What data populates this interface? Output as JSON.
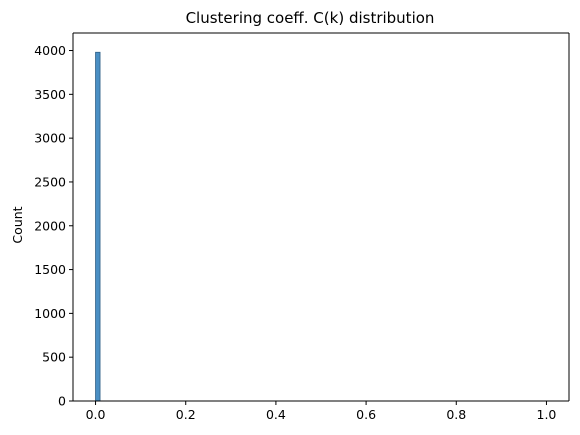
{
  "chart_data": {
    "type": "bar",
    "title": "Clustering coeff. C(k) distribution",
    "xlabel": "",
    "ylabel": "Count",
    "xlim": [
      -0.05,
      1.05
    ],
    "ylim": [
      0,
      4200
    ],
    "x_ticks": [
      0.0,
      0.2,
      0.4,
      0.6,
      0.8,
      1.0
    ],
    "x_tick_labels": [
      "0.0",
      "0.2",
      "0.4",
      "0.6",
      "0.8",
      "1.0"
    ],
    "y_ticks": [
      0,
      500,
      1000,
      1500,
      2000,
      2500,
      3000,
      3500,
      4000
    ],
    "y_tick_labels": [
      "0",
      "500",
      "1000",
      "1500",
      "2000",
      "2500",
      "3000",
      "3500",
      "4000"
    ],
    "bins": [
      {
        "x0": 0.0,
        "x1": 0.01,
        "count": 3980
      }
    ],
    "grid": false,
    "legend": "none",
    "colors": {
      "bar_fill": "#4a8fc4",
      "bar_edge": "#2f5f86",
      "axis": "#000000"
    }
  }
}
